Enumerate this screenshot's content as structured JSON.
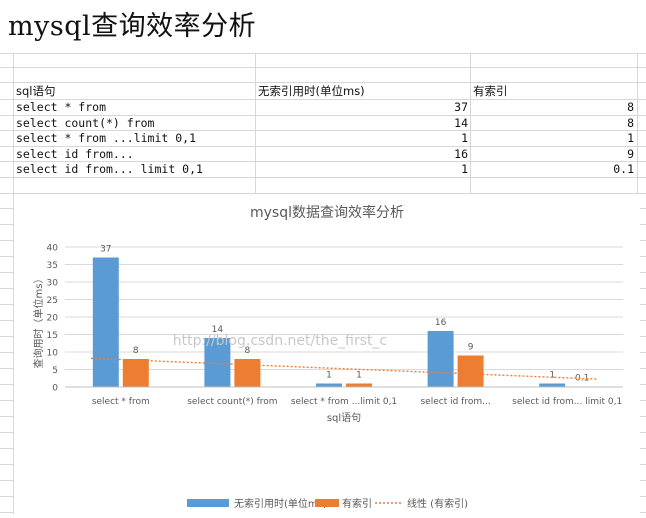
{
  "page": {
    "title": "mysql查询效率分析"
  },
  "table": {
    "headers": [
      "sql语句",
      "无索引用时(单位ms)",
      "有索引"
    ],
    "rows": [
      {
        "sql": "select * from",
        "no_index": "37",
        "with_index": "8"
      },
      {
        "sql": "select count(*) from",
        "no_index": "14",
        "with_index": "8"
      },
      {
        "sql": "select * from ...limit 0,1",
        "no_index": "1",
        "with_index": "1"
      },
      {
        "sql": "select id from...",
        "no_index": "16",
        "with_index": "9"
      },
      {
        "sql": "select id from... limit 0,1",
        "no_index": "1",
        "with_index": "0.1"
      }
    ]
  },
  "watermark": "http://blog.csdn.net/the_first_c",
  "colors": {
    "series1": "#5b9bd5",
    "series2": "#ed7d31",
    "trend": "#ed7d31",
    "grid": "#d9d9d9",
    "axis_text": "#595959"
  },
  "chart_data": {
    "type": "bar",
    "title": "mysql数据查询效率分析",
    "xlabel": "sql语句",
    "ylabel": "查询用时（单位ms）",
    "ylim": [
      0,
      40
    ],
    "yticks": [
      0,
      5,
      10,
      15,
      20,
      25,
      30,
      35,
      40
    ],
    "grid": true,
    "legend_position": "bottom",
    "categories": [
      "select * from",
      "select count(*) from",
      "select * from ...limit 0,1",
      "select id from...",
      "select id from... limit 0,1"
    ],
    "series": [
      {
        "name": "无索引用时(单位ms)",
        "values": [
          37,
          14,
          1,
          16,
          1
        ],
        "labels": [
          "37",
          "14",
          "1",
          "16",
          "1"
        ]
      },
      {
        "name": "有索引",
        "values": [
          8,
          8,
          1,
          9,
          0.1
        ],
        "labels": [
          "8",
          "8",
          "1",
          "9",
          "0.1"
        ]
      }
    ],
    "trendline": {
      "name": "线性 (有索引)",
      "series": "有索引",
      "type": "linear"
    }
  }
}
